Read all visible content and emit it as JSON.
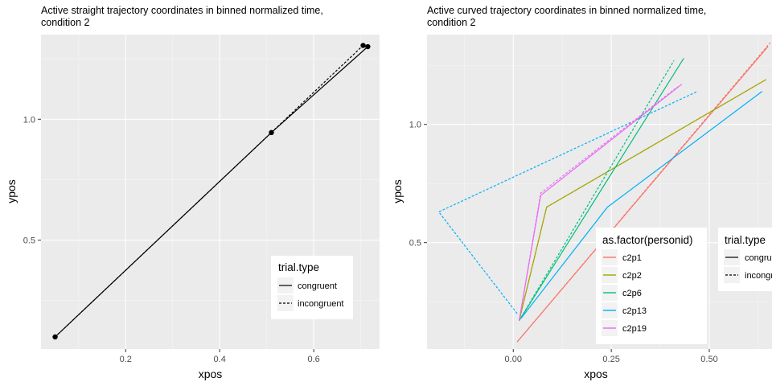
{
  "chart_data": [
    {
      "type": "line",
      "title_lines": [
        "Active straight trajectory coordinates in binned normalized time,",
        "condition 2"
      ],
      "xlabel": "xpos",
      "ylabel": "ypos",
      "xlim": [
        0.02,
        0.74
      ],
      "ylim": [
        0.05,
        1.35
      ],
      "x_ticks": [
        0.2,
        0.4,
        0.6
      ],
      "x_tick_labels": [
        "0.2",
        "0.4",
        "0.6"
      ],
      "y_ticks": [
        0.5,
        1.0
      ],
      "y_tick_labels": [
        "0.5",
        "1.0"
      ],
      "grid": true,
      "legend": {
        "title": "trial.type",
        "placement": "bottom-right",
        "entries": [
          {
            "label": "congruent",
            "linetype": "solid"
          },
          {
            "label": "incongruent",
            "linetype": "dashed"
          }
        ]
      },
      "series": [
        {
          "trial_type": "congruent",
          "linetype": "solid",
          "color": "#000000",
          "points": [
            [
              0.05,
              0.1
            ],
            [
              0.51,
              0.945
            ],
            [
              0.715,
              1.3
            ]
          ]
        },
        {
          "trial_type": "incongruent",
          "linetype": "dashed",
          "color": "#000000",
          "points": [
            [
              0.05,
              0.1
            ],
            [
              0.51,
              0.945
            ],
            [
              0.705,
              1.305
            ]
          ]
        }
      ],
      "markers": [
        [
          0.05,
          0.1
        ],
        [
          0.51,
          0.945
        ],
        [
          0.705,
          1.305
        ],
        [
          0.715,
          1.3
        ]
      ]
    },
    {
      "type": "line",
      "title_lines": [
        "Active curved trajectory coordinates in binned normalized time,",
        "condition 2"
      ],
      "xlabel": "xpos",
      "ylabel": "ypos",
      "xlim": [
        -0.22,
        0.66
      ],
      "ylim": [
        0.05,
        1.38
      ],
      "x_ticks": [
        0.0,
        0.25,
        0.5
      ],
      "x_tick_labels": [
        "0.00",
        "0.25",
        "0.50"
      ],
      "y_ticks": [
        0.5,
        1.0
      ],
      "y_tick_labels": [
        "0.5",
        "1.0"
      ],
      "grid": true,
      "legend_person": {
        "title": "as.factor(personid)",
        "placement": "bottom-right",
        "entries": [
          {
            "label": "c2p1",
            "color": "#F8766D"
          },
          {
            "label": "c2p2",
            "color": "#A3A500"
          },
          {
            "label": "c2p6",
            "color": "#00BF7D"
          },
          {
            "label": "c2p13",
            "color": "#00B0F6"
          },
          {
            "label": "c2p19",
            "color": "#E76BF3"
          }
        ]
      },
      "legend_trial": {
        "title": "trial.type",
        "placement": "right",
        "entries": [
          {
            "label": "congruent",
            "linetype": "solid"
          },
          {
            "label": "incongruent",
            "linetype": "dashed"
          }
        ]
      },
      "series": [
        {
          "personid": "c2p1",
          "trial_type": "congruent",
          "linetype": "solid",
          "color": "#F8766D",
          "points": [
            [
              0.01,
              0.08
            ],
            [
              0.65,
              1.33
            ]
          ]
        },
        {
          "personid": "c2p1",
          "trial_type": "incongruent",
          "linetype": "dashed",
          "color": "#F8766D",
          "points": [
            [
              0.01,
              0.08
            ],
            [
              0.655,
              1.345
            ]
          ]
        },
        {
          "personid": "c2p2",
          "trial_type": "congruent",
          "linetype": "solid",
          "color": "#A3A500",
          "points": [
            [
              0.015,
              0.17
            ],
            [
              0.085,
              0.65
            ],
            [
              0.645,
              1.19
            ]
          ]
        },
        {
          "personid": "c2p2",
          "trial_type": "incongruent",
          "linetype": "dashed",
          "color": "#A3A500",
          "points": [
            [
              0.015,
              0.17
            ],
            [
              0.085,
              0.65
            ],
            [
              0.645,
              1.19
            ]
          ]
        },
        {
          "personid": "c2p6",
          "trial_type": "congruent",
          "linetype": "solid",
          "color": "#00BF7D",
          "points": [
            [
              0.015,
              0.17
            ],
            [
              0.435,
              1.28
            ]
          ]
        },
        {
          "personid": "c2p6",
          "trial_type": "incongruent",
          "linetype": "dashed",
          "color": "#00BF7D",
          "points": [
            [
              0.015,
              0.17
            ],
            [
              0.41,
              1.27
            ]
          ]
        },
        {
          "personid": "c2p13",
          "trial_type": "congruent",
          "linetype": "solid",
          "color": "#00B0F6",
          "points": [
            [
              0.02,
              0.18
            ],
            [
              0.24,
              0.65
            ],
            [
              0.635,
              1.14
            ]
          ]
        },
        {
          "personid": "c2p13",
          "trial_type": "incongruent",
          "linetype": "dashed",
          "color": "#00B0F6",
          "points": [
            [
              0.01,
              0.2
            ],
            [
              -0.19,
              0.63
            ],
            [
              0.47,
              1.14
            ]
          ]
        },
        {
          "personid": "c2p19",
          "trial_type": "congruent",
          "linetype": "solid",
          "color": "#E76BF3",
          "points": [
            [
              0.015,
              0.17
            ],
            [
              0.07,
              0.7
            ],
            [
              0.43,
              1.17
            ]
          ]
        },
        {
          "personid": "c2p19",
          "trial_type": "incongruent",
          "linetype": "dashed",
          "color": "#E76BF3",
          "points": [
            [
              0.015,
              0.17
            ],
            [
              0.07,
              0.71
            ],
            [
              0.42,
              1.16
            ]
          ]
        }
      ]
    }
  ]
}
